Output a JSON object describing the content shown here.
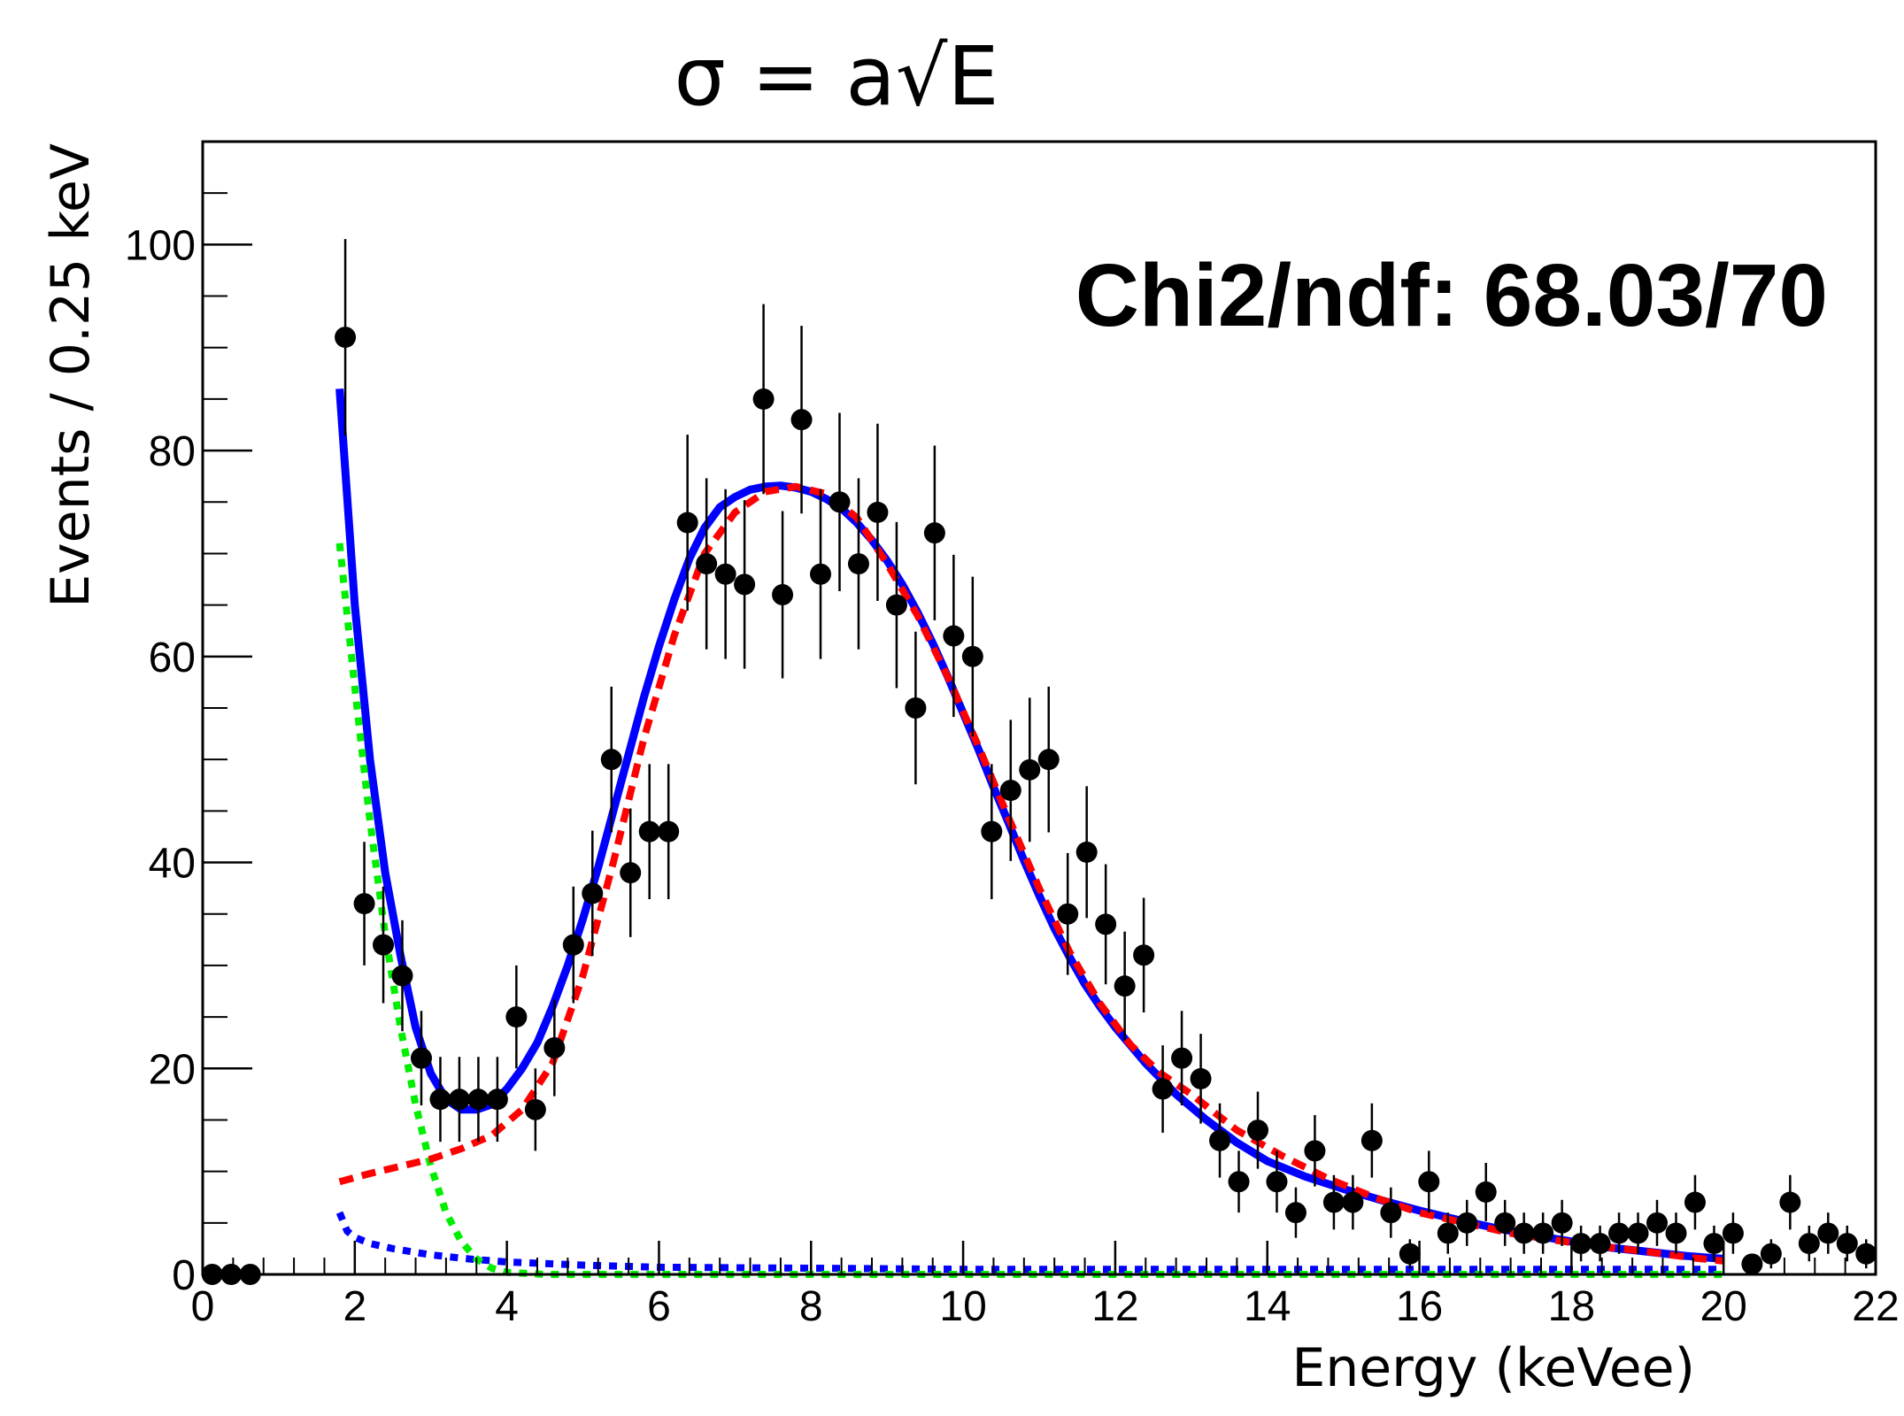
{
  "chart_data": {
    "type": "scatter",
    "title": "σ = a√E",
    "xlabel": "Energy (keVee)",
    "ylabel": "Events / 0.25 keV",
    "xlim": [
      0,
      22
    ],
    "ylim": [
      0,
      110
    ],
    "x_ticks": [
      0,
      2,
      4,
      6,
      8,
      10,
      12,
      14,
      16,
      18,
      20,
      22
    ],
    "y_ticks": [
      0,
      20,
      40,
      60,
      80,
      100
    ],
    "annotation": "Chi2/ndf: 68.03/70",
    "colors": {
      "data": "#000000",
      "total_fit": "#0000ff",
      "signal": "#ff0000",
      "low_energy": "#00ee00",
      "flat_background": "#0000ff"
    },
    "series": [
      {
        "name": "data",
        "style": "points-with-errorbars",
        "x": [
          0.125,
          0.375,
          0.625,
          1.875,
          2.125,
          2.375,
          2.625,
          2.875,
          3.125,
          3.375,
          3.625,
          3.875,
          4.125,
          4.375,
          4.625,
          4.875,
          5.125,
          5.375,
          5.625,
          5.875,
          6.125,
          6.375,
          6.625,
          6.875,
          7.125,
          7.375,
          7.625,
          7.875,
          8.125,
          8.375,
          8.625,
          8.875,
          9.125,
          9.375,
          9.625,
          9.875,
          10.125,
          10.375,
          10.625,
          10.875,
          11.125,
          11.375,
          11.625,
          11.875,
          12.125,
          12.375,
          12.625,
          12.875,
          13.125,
          13.375,
          13.625,
          13.875,
          14.125,
          14.375,
          14.625,
          14.875,
          15.125,
          15.375,
          15.625,
          15.875,
          16.125,
          16.375,
          16.625,
          16.875,
          17.125,
          17.375,
          17.625,
          17.875,
          18.125,
          18.375,
          18.625,
          18.875,
          19.125,
          19.375,
          19.625,
          19.875,
          20.125,
          20.375,
          20.625,
          20.875,
          21.125,
          21.375,
          21.625,
          21.875
        ],
        "y": [
          0,
          0,
          0,
          91,
          36,
          32,
          29,
          21,
          17,
          17,
          17,
          17,
          25,
          16,
          22,
          32,
          37,
          50,
          39,
          43,
          43,
          73,
          69,
          68,
          67,
          85,
          66,
          83,
          68,
          75,
          69,
          74,
          65,
          55,
          72,
          62,
          60,
          43,
          47,
          49,
          50,
          35,
          41,
          34,
          28,
          31,
          18,
          21,
          19,
          13,
          9,
          14,
          9,
          6,
          12,
          7,
          7,
          13,
          6,
          2,
          9,
          4,
          5,
          8,
          5,
          4,
          4,
          5,
          3,
          3,
          4,
          4,
          5,
          4,
          7,
          3,
          4,
          1,
          2,
          7,
          3,
          4,
          3,
          2
        ]
      },
      {
        "name": "total fit",
        "style": "solid",
        "color": "#0000ff",
        "x": [
          1.8,
          2.0,
          2.2,
          2.4,
          2.6,
          2.8,
          3.0,
          3.2,
          3.4,
          3.6,
          3.8,
          4.0,
          4.2,
          4.4,
          4.6,
          4.8,
          5.0,
          5.2,
          5.4,
          5.6,
          5.8,
          6.0,
          6.2,
          6.4,
          6.6,
          6.8,
          7.0,
          7.2,
          7.4,
          7.6,
          7.8,
          8.0,
          8.2,
          8.4,
          8.6,
          8.8,
          9.0,
          9.2,
          9.4,
          9.6,
          9.8,
          10.0,
          10.2,
          10.4,
          10.6,
          10.8,
          11.0,
          11.2,
          11.4,
          11.6,
          11.8,
          12.0,
          12.4,
          12.8,
          13.2,
          13.6,
          14.0,
          14.5,
          15.0,
          15.5,
          16.0,
          16.5,
          17.0,
          17.5,
          18.0,
          18.5,
          19.0,
          19.5,
          20.0
        ],
        "y": [
          86,
          65,
          50,
          39,
          31,
          24,
          19.5,
          17,
          16,
          16,
          16.5,
          18,
          20,
          22.5,
          26,
          30,
          34.5,
          39.5,
          45,
          50.5,
          56,
          61,
          65.5,
          69.5,
          72.5,
          74.5,
          75.5,
          76.2,
          76.5,
          76.6,
          76.4,
          76,
          75.3,
          74.4,
          73,
          71.3,
          69.3,
          67,
          64.3,
          61.3,
          58,
          54.5,
          51,
          47.3,
          43.8,
          40.2,
          36.8,
          33.6,
          30.8,
          28.2,
          26,
          24,
          20.5,
          17.5,
          15,
          12.8,
          11,
          9.5,
          8.3,
          7.2,
          6.2,
          5.3,
          4.5,
          3.8,
          3.2,
          2.6,
          2.2,
          1.8,
          1.5
        ]
      },
      {
        "name": "signal component",
        "style": "dashed",
        "color": "#ff0000",
        "x": [
          1.8,
          2.2,
          2.6,
          3.0,
          3.4,
          3.8,
          4.2,
          4.6,
          5.0,
          5.4,
          5.8,
          6.2,
          6.6,
          7.0,
          7.4,
          7.8,
          8.2,
          8.6,
          9.0,
          9.4,
          9.8,
          10.2,
          10.6,
          11.0,
          11.4,
          11.8,
          12.2,
          12.6,
          13.0,
          13.6,
          14.2,
          14.8,
          15.4,
          16.0,
          16.6,
          17.2,
          17.8,
          18.4,
          19.0,
          19.6,
          20.0
        ],
        "y": [
          9,
          9.8,
          10.5,
          11.2,
          12.2,
          13.5,
          16,
          20.5,
          29,
          40,
          52,
          62,
          70,
          74,
          76,
          76.5,
          75.8,
          73.5,
          69,
          64,
          58,
          51.3,
          44.3,
          37.5,
          31.3,
          26.3,
          22.3,
          19.5,
          17.5,
          14,
          11.5,
          9.3,
          7.5,
          6,
          5,
          4,
          3.3,
          2.7,
          2.2,
          1.6,
          1.3
        ]
      },
      {
        "name": "low-energy component",
        "style": "dotted",
        "color": "#00ee00",
        "x": [
          1.8,
          2.0,
          2.2,
          2.4,
          2.6,
          2.8,
          3.0,
          3.2,
          3.4,
          3.6,
          3.8,
          4.0,
          4.5,
          5.0,
          6.0,
          8.0,
          10.0,
          12.0,
          14.0,
          16.0,
          18.0,
          20.0
        ],
        "y": [
          71,
          57,
          44,
          33,
          24,
          16.5,
          10.5,
          6,
          3.2,
          1.5,
          0.6,
          0.2,
          0,
          0,
          0,
          0,
          0,
          0,
          0,
          0,
          0,
          0
        ]
      },
      {
        "name": "flat background component",
        "style": "dotted",
        "color": "#0000ff",
        "x": [
          1.8,
          1.9,
          2.0,
          2.2,
          2.5,
          3.0,
          3.5,
          4.0,
          5.0,
          6.0,
          8.0,
          10.0,
          12.0,
          14.0,
          16.0,
          18.0,
          20.0
        ],
        "y": [
          6,
          4.2,
          3.6,
          3.0,
          2.5,
          1.9,
          1.5,
          1.2,
          0.9,
          0.7,
          0.6,
          0.5,
          0.5,
          0.5,
          0.5,
          0.5,
          0.5
        ]
      }
    ]
  }
}
